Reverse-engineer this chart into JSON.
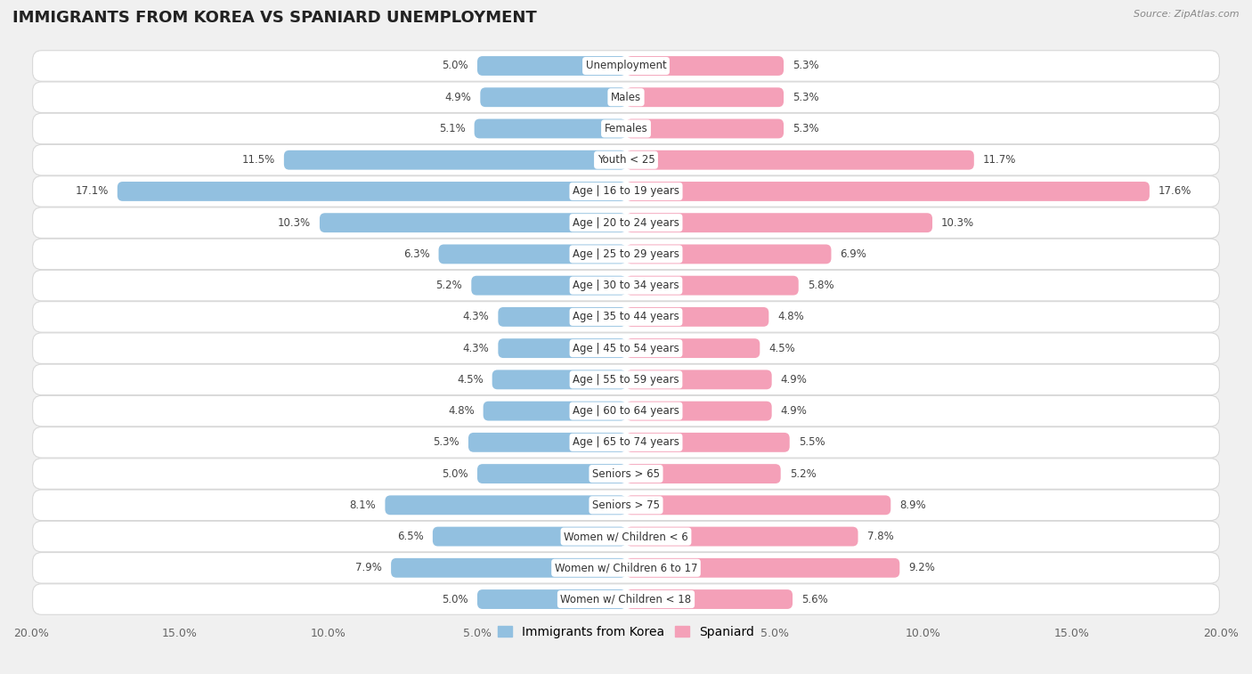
{
  "title": "IMMIGRANTS FROM KOREA VS SPANIARD UNEMPLOYMENT",
  "source": "Source: ZipAtlas.com",
  "categories": [
    "Unemployment",
    "Males",
    "Females",
    "Youth < 25",
    "Age | 16 to 19 years",
    "Age | 20 to 24 years",
    "Age | 25 to 29 years",
    "Age | 30 to 34 years",
    "Age | 35 to 44 years",
    "Age | 45 to 54 years",
    "Age | 55 to 59 years",
    "Age | 60 to 64 years",
    "Age | 65 to 74 years",
    "Seniors > 65",
    "Seniors > 75",
    "Women w/ Children < 6",
    "Women w/ Children 6 to 17",
    "Women w/ Children < 18"
  ],
  "korea_values": [
    5.0,
    4.9,
    5.1,
    11.5,
    17.1,
    10.3,
    6.3,
    5.2,
    4.3,
    4.3,
    4.5,
    4.8,
    5.3,
    5.0,
    8.1,
    6.5,
    7.9,
    5.0
  ],
  "spaniard_values": [
    5.3,
    5.3,
    5.3,
    11.7,
    17.6,
    10.3,
    6.9,
    5.8,
    4.8,
    4.5,
    4.9,
    4.9,
    5.5,
    5.2,
    8.9,
    7.8,
    9.2,
    5.6
  ],
  "korea_color": "#92c0e0",
  "spaniard_color": "#f4a0b8",
  "background_color": "#f0f0f0",
  "row_bg_color": "#ffffff",
  "row_border_color": "#d8d8d8",
  "x_max": 20.0,
  "title_fontsize": 13,
  "label_fontsize": 8.5,
  "value_fontsize": 8.5,
  "tick_fontsize": 9,
  "legend_fontsize": 10
}
